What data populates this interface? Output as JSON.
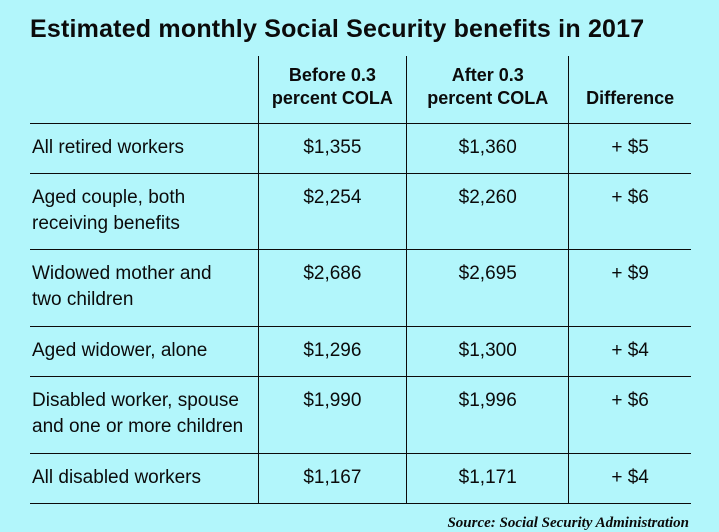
{
  "colors": {
    "background": "#b2f6fb",
    "line": "#0b0b0b",
    "text": "#0b0b0b"
  },
  "chart_data": {
    "type": "table",
    "title": "Estimated monthly Social Security benefits in 2017",
    "columns": [
      "",
      "Before 0.3\npercent COLA",
      "After 0.3\npercent COLA",
      "Difference"
    ],
    "rows": [
      {
        "label": "All retired workers",
        "before": "$1,355",
        "after": "$1,360",
        "difference": "+ $5"
      },
      {
        "label": "Aged couple, both\nreceiving benefits",
        "before": "$2,254",
        "after": "$2,260",
        "difference": "+ $6"
      },
      {
        "label": "Widowed mother and\ntwo children",
        "before": "$2,686",
        "after": "$2,695",
        "difference": "+ $9"
      },
      {
        "label": "Aged widower, alone",
        "before": "$1,296",
        "after": "$1,300",
        "difference": "+ $4"
      },
      {
        "label": "Disabled worker, spouse\nand one or more children",
        "before": "$1,990",
        "after": "$1,996",
        "difference": "+ $6"
      },
      {
        "label": "All disabled workers",
        "before": "$1,167",
        "after": "$1,171",
        "difference": "+ $4"
      }
    ],
    "source": "Source: Social Security Administration"
  }
}
